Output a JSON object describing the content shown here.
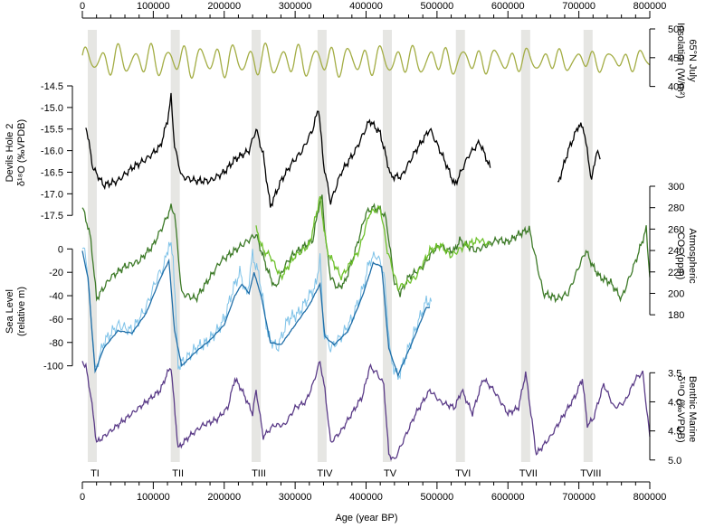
{
  "chart_data": {
    "type": "line",
    "xlabel": "Age (year BP)",
    "xlim": [
      0,
      800000
    ],
    "x_ticks": [
      0,
      100000,
      200000,
      300000,
      400000,
      500000,
      600000,
      700000,
      800000
    ],
    "x_tick_labels": [
      "0",
      "100000",
      "200000",
      "300000",
      "400000",
      "500000",
      "600000",
      "700000",
      "800000"
    ],
    "terminations": [
      {
        "label": "TI",
        "age": 14000
      },
      {
        "label": "TII",
        "age": 131000
      },
      {
        "label": "TIII",
        "age": 245000
      },
      {
        "label": "TIV",
        "age": 338000
      },
      {
        "label": "TV",
        "age": 430000
      },
      {
        "label": "TVI",
        "age": 533000
      },
      {
        "label": "TVII",
        "age": 625000
      },
      {
        "label": "TVIII",
        "age": 713000
      }
    ],
    "panels": [
      {
        "id": "insolation",
        "ylabel_lines": [
          "65°N July",
          "Insolation (W/m²)"
        ],
        "axis_side": "right",
        "ylim": [
          390,
          500
        ],
        "ticks": [
          400,
          450,
          500
        ],
        "tick_labels": [
          "400",
          "450",
          "500"
        ],
        "color": "#a3ad44",
        "series": [
          {
            "x": [
              0,
              800000
            ],
            "mode": "orbital",
            "mean": 445,
            "amp": 28
          }
        ]
      },
      {
        "id": "devils_hole",
        "ylabel_lines": [
          "Devils Hole 2",
          "δ¹⁸O (‰VPDB)"
        ],
        "axis_side": "left",
        "inverted": true,
        "ylim": [
          -14.5,
          -17.6
        ],
        "ticks": [
          -14.5,
          -15.0,
          -15.5,
          -16.0,
          -16.5,
          -17.0,
          -17.5
        ],
        "tick_labels": [
          "-14.5",
          "-15.0",
          "-15.5",
          "-16.0",
          "-16.5",
          "-17.0",
          "-17.5"
        ],
        "color": "#000000",
        "series": [
          {
            "x": [
              5000,
              15000,
              30000,
              50000,
              70000,
              90000,
              110000,
              120000,
              125000,
              130000,
              140000,
              160000,
              180000,
              200000,
              215000,
              225000,
              235000,
              245000,
              255000,
              265000,
              280000,
              295000,
              310000,
              325000,
              333000,
              340000,
              350000,
              365000,
              385000,
              405000,
              420000,
              435000,
              450000,
              470000,
              490000,
              510000,
              525000,
              545000,
              560000,
              575000
            ],
            "y": [
              -15.4,
              -16.4,
              -16.8,
              -16.7,
              -16.4,
              -16.2,
              -15.9,
              -15.3,
              -14.75,
              -15.9,
              -16.6,
              -16.7,
              -16.7,
              -16.5,
              -16.2,
              -16.1,
              -16.0,
              -15.5,
              -16.1,
              -17.3,
              -16.7,
              -16.3,
              -16.0,
              -15.5,
              -15.0,
              -16.3,
              -17.2,
              -16.5,
              -16.0,
              -15.3,
              -15.6,
              -16.6,
              -16.6,
              -16.0,
              -15.5,
              -16.2,
              -16.8,
              -16.1,
              -15.8,
              -16.4
            ]
          },
          {
            "x": [
              670000,
              685000,
              700000,
              707000,
              718000,
              725000,
              730000
            ],
            "y": [
              -16.8,
              -16.0,
              -15.4,
              -15.5,
              -16.7,
              -16.0,
              -16.2
            ]
          }
        ]
      },
      {
        "id": "co2",
        "ylabel_lines": [
          "Atmospheric",
          "CO₂ (ppm)"
        ],
        "axis_side": "right",
        "ylim": [
          170,
          300
        ],
        "ticks": [
          180,
          200,
          220,
          240,
          260,
          280,
          300
        ],
        "tick_labels": [
          "180",
          "200",
          "220",
          "240",
          "260",
          "280",
          "300"
        ],
        "series": [
          {
            "color": "#3d7a28",
            "x": [
              0,
              5000,
              12000,
              20000,
              40000,
              60000,
              80000,
              100000,
              115000,
              125000,
              130000,
              140000,
              160000,
              175000,
              195000,
              215000,
              235000,
              245000,
              252000,
              262000,
              272000,
              285000,
              295000,
              305000,
              315000,
              325000,
              333000,
              338000,
              343000,
              350000,
              360000,
              370000,
              385000,
              400000,
              410000,
              420000,
              428000,
              433000,
              440000,
              448000,
              460000,
              480000,
              495000,
              505000,
              515000,
              525000,
              532000,
              540000,
              555000,
              570000,
              585000,
              600000,
              615000,
              630000,
              650000,
              670000,
              685000,
              700000,
              710000,
              720000,
              730000,
              745000,
              760000,
              780000,
              795000,
              800000
            ],
            "y": [
              280,
              270,
              250,
              195,
              215,
              225,
              230,
              245,
              265,
              280,
              275,
              200,
              195,
              210,
              230,
              240,
              250,
              255,
              240,
              220,
              205,
              225,
              235,
              240,
              245,
              250,
              280,
              290,
              250,
              215,
              205,
              210,
              240,
              275,
              280,
              278,
              270,
              245,
              210,
              200,
              215,
              225,
              240,
              245,
              240,
              240,
              250,
              245,
              240,
              245,
              250,
              248,
              255,
              260,
              200,
              195,
              200,
              225,
              240,
              225,
              215,
              210,
              195,
              230,
              260,
              215
            ]
          },
          {
            "color": "#6ec12c",
            "x": [
              245000,
              255000,
              265000,
              280000,
              300000,
              320000,
              335000,
              345000,
              365000,
              390000,
              405000,
              420000,
              430000,
              445000,
              470000,
              490000,
              505000,
              520000,
              540000,
              560000,
              575000
            ],
            "y": [
              260,
              240,
              235,
              215,
              235,
              245,
              290,
              240,
              215,
              240,
              275,
              280,
              240,
              205,
              215,
              240,
              245,
              235,
              245,
              250,
              245
            ]
          }
        ]
      },
      {
        "id": "sea_level",
        "ylabel_lines": [
          "Sea Level",
          "(relative m)"
        ],
        "axis_side": "left",
        "ylim": [
          -115,
          8
        ],
        "ticks": [
          0,
          -20,
          -40,
          -60,
          -80,
          -100
        ],
        "tick_labels": [
          "0",
          "-20",
          "-40",
          "-60",
          "-80",
          "-100"
        ],
        "series": [
          {
            "name": "raw",
            "color": "#7ec2e8",
            "x": [
              0,
              5000,
              10000,
              18000,
              30000,
              50000,
              70000,
              90000,
              105000,
              115000,
              122000,
              128000,
              135000,
              145000,
              160000,
              175000,
              190000,
              200000,
              212000,
              222000,
              232000,
              240000,
              250000,
              262000,
              275000,
              290000,
              305000,
              320000,
              330000,
              335000,
              340000,
              350000,
              365000,
              380000,
              395000,
              405000,
              415000,
              425000,
              435000,
              445000,
              460000,
              475000,
              485000,
              492000
            ],
            "y": [
              0,
              -5,
              -40,
              -105,
              -80,
              -65,
              -70,
              -50,
              -25,
              -15,
              5,
              -5,
              -100,
              -95,
              -85,
              -80,
              -70,
              -60,
              -35,
              -20,
              -40,
              -5,
              -25,
              -75,
              -85,
              -60,
              -55,
              -40,
              -30,
              -5,
              -70,
              -85,
              -75,
              -60,
              -35,
              -10,
              -5,
              -20,
              -95,
              -110,
              -85,
              -60,
              -45,
              -45
            ]
          },
          {
            "name": "smoothed",
            "color": "#1f6ea8",
            "x": [
              0,
              8000,
              18000,
              30000,
              50000,
              70000,
              90000,
              110000,
              122000,
              130000,
              140000,
              160000,
              180000,
              200000,
              215000,
              225000,
              235000,
              242000,
              252000,
              265000,
              280000,
              300000,
              320000,
              335000,
              342000,
              355000,
              375000,
              395000,
              410000,
              422000,
              432000,
              445000,
              465000,
              485000,
              490000
            ],
            "y": [
              -2,
              -25,
              -105,
              -85,
              -70,
              -72,
              -55,
              -25,
              -10,
              -70,
              -100,
              -88,
              -78,
              -65,
              -40,
              -30,
              -38,
              -20,
              -40,
              -80,
              -82,
              -65,
              -48,
              -30,
              -75,
              -82,
              -70,
              -40,
              -12,
              -15,
              -85,
              -108,
              -80,
              -50,
              -50
            ]
          }
        ]
      },
      {
        "id": "benthic",
        "ylabel_lines": [
          "Benthic Marine",
          "δ¹⁸O (‰VPDB)"
        ],
        "axis_side": "right",
        "inverted": true,
        "ylim": [
          3.2,
          5.05
        ],
        "ticks": [
          3.5,
          4.0,
          4.5,
          5.0
        ],
        "tick_labels": [
          "3.5",
          "4.0",
          "4.5",
          "5.0"
        ],
        "color": "#5b3c88",
        "series": [
          {
            "x": [
              0,
              5000,
              12000,
              20000,
              40000,
              60000,
              80000,
              100000,
              110000,
              120000,
              125000,
              135000,
              150000,
              170000,
              190000,
              205000,
              215000,
              225000,
              240000,
              245000,
              255000,
              270000,
              285000,
              300000,
              315000,
              325000,
              335000,
              342000,
              350000,
              365000,
              380000,
              395000,
              405000,
              415000,
              425000,
              432000,
              440000,
              455000,
              470000,
              490000,
              505000,
              525000,
              535000,
              550000,
              565000,
              580000,
              600000,
              615000,
              625000,
              640000,
              660000,
              680000,
              695000,
              705000,
              712000,
              720000,
              735000,
              750000,
              765000,
              780000,
              790000,
              800000
            ],
            "y": [
              3.3,
              3.4,
              3.9,
              4.7,
              4.5,
              4.3,
              4.1,
              3.9,
              3.8,
              3.5,
              3.4,
              4.8,
              4.6,
              4.4,
              4.3,
              4.1,
              3.6,
              3.8,
              4.2,
              3.8,
              4.6,
              4.4,
              4.4,
              4.1,
              4.0,
              3.7,
              3.3,
              3.8,
              4.7,
              4.5,
              4.2,
              3.9,
              3.4,
              3.5,
              3.7,
              4.9,
              5.0,
              4.6,
              4.2,
              3.8,
              4.0,
              4.1,
              3.8,
              4.2,
              3.6,
              3.8,
              4.2,
              4.1,
              3.5,
              4.9,
              4.6,
              4.2,
              3.9,
              3.6,
              4.4,
              4.3,
              3.7,
              4.1,
              4.0,
              3.6,
              3.5,
              4.6
            ]
          }
        ]
      }
    ]
  }
}
